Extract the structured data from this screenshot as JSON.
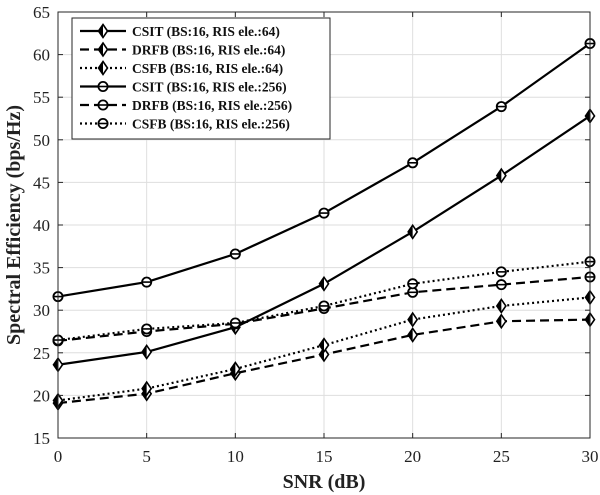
{
  "chart_data": {
    "type": "line",
    "title": "",
    "xlabel": "SNR (dB)",
    "ylabel": "Spectral Efficiency (bps/Hz)",
    "xlim": [
      0,
      30
    ],
    "ylim": [
      15,
      65
    ],
    "xticks": [
      0,
      5,
      10,
      15,
      20,
      25,
      30
    ],
    "yticks": [
      15,
      20,
      25,
      30,
      35,
      40,
      45,
      50,
      55,
      60,
      65
    ],
    "grid": true,
    "legend_position": "top-left",
    "x": [
      0,
      5,
      10,
      15,
      20,
      25,
      30
    ],
    "series": [
      {
        "name": "CSIT (BS:16, RIS ele.:64)",
        "values": [
          23.6,
          25.1,
          28.0,
          33.1,
          39.2,
          45.8,
          52.8
        ],
        "line_style": "solid",
        "marker": "diamond",
        "color": "#000000"
      },
      {
        "name": "DRFB (BS:16, RIS ele.:64)",
        "values": [
          19.1,
          20.2,
          22.6,
          24.8,
          27.1,
          28.7,
          28.9
        ],
        "line_style": "dashed",
        "marker": "diamond",
        "color": "#000000"
      },
      {
        "name": "CSFB (BS:16, RIS ele.:64)",
        "values": [
          19.4,
          20.8,
          23.1,
          25.9,
          28.9,
          30.5,
          31.5
        ],
        "line_style": "dotted",
        "marker": "diamond",
        "color": "#000000"
      },
      {
        "name": "CSIT (BS:16, RIS ele.:256)",
        "values": [
          31.6,
          33.3,
          36.6,
          41.4,
          47.3,
          53.9,
          61.3
        ],
        "line_style": "solid",
        "marker": "circle",
        "color": "#000000"
      },
      {
        "name": "DRFB (BS:16, RIS ele.:256)",
        "values": [
          26.4,
          27.5,
          28.4,
          30.2,
          32.1,
          33.0,
          33.9
        ],
        "line_style": "dashed",
        "marker": "circle",
        "color": "#000000"
      },
      {
        "name": "CSFB (BS:16, RIS ele.:256)",
        "values": [
          26.5,
          27.8,
          28.5,
          30.5,
          33.1,
          34.5,
          35.7
        ],
        "line_style": "dotted",
        "marker": "circle",
        "color": "#000000"
      }
    ]
  }
}
